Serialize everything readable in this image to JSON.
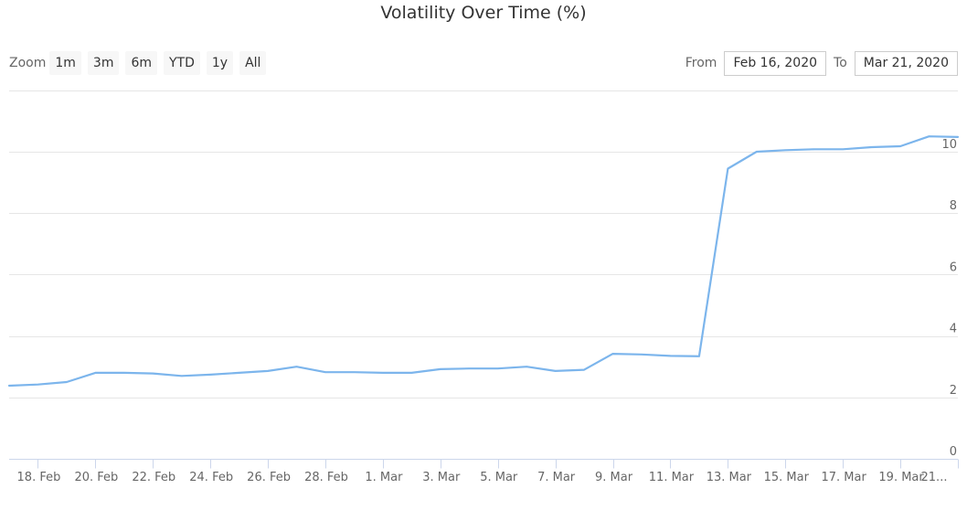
{
  "title": "Volatility Over Time (%)",
  "range_selector": {
    "zoom_label": "Zoom",
    "buttons": [
      "1m",
      "3m",
      "6m",
      "YTD",
      "1y",
      "All"
    ]
  },
  "date_inputs": {
    "from_label": "From",
    "from_value": "Feb 16, 2020",
    "to_label": "To",
    "to_value": "Mar 21, 2020"
  },
  "colors": {
    "line": "#7cb5ec",
    "grid": "#e6e6e6",
    "axis": "#ccd6eb",
    "text": "#666666"
  },
  "chart_data": {
    "type": "line",
    "title": "Volatility Over Time (%)",
    "xlabel": "",
    "ylabel": "",
    "y_ticks": [
      0,
      2,
      4,
      6,
      8,
      10
    ],
    "ylim": [
      0,
      12
    ],
    "grid": true,
    "x_tick_labels": [
      "18. Feb",
      "20. Feb",
      "22. Feb",
      "24. Feb",
      "26. Feb",
      "28. Feb",
      "1. Mar",
      "3. Mar",
      "5. Mar",
      "7. Mar",
      "9. Mar",
      "11. Mar",
      "13. Mar",
      "15. Mar",
      "17. Mar",
      "19. Mar",
      "21..."
    ],
    "x_tick_dates": [
      "2020-02-18",
      "2020-02-20",
      "2020-02-22",
      "2020-02-24",
      "2020-02-26",
      "2020-02-28",
      "2020-03-01",
      "2020-03-03",
      "2020-03-05",
      "2020-03-07",
      "2020-03-09",
      "2020-03-11",
      "2020-03-13",
      "2020-03-15",
      "2020-03-17",
      "2020-03-19",
      "2020-03-21"
    ],
    "x": [
      "2020-02-17",
      "2020-02-18",
      "2020-02-19",
      "2020-02-20",
      "2020-02-21",
      "2020-02-22",
      "2020-02-23",
      "2020-02-24",
      "2020-02-25",
      "2020-02-26",
      "2020-02-27",
      "2020-02-28",
      "2020-02-29",
      "2020-03-01",
      "2020-03-02",
      "2020-03-03",
      "2020-03-04",
      "2020-03-05",
      "2020-03-06",
      "2020-03-07",
      "2020-03-08",
      "2020-03-09",
      "2020-03-10",
      "2020-03-11",
      "2020-03-12",
      "2020-03-13",
      "2020-03-14",
      "2020-03-15",
      "2020-03-16",
      "2020-03-17",
      "2020-03-18",
      "2020-03-19",
      "2020-03-20",
      "2020-03-21"
    ],
    "series": [
      {
        "values": [
          2.38,
          2.42,
          2.5,
          2.8,
          2.8,
          2.78,
          2.7,
          2.74,
          2.8,
          2.86,
          3.0,
          2.82,
          2.82,
          2.8,
          2.8,
          2.92,
          2.94,
          2.94,
          3.0,
          2.86,
          2.9,
          3.42,
          3.4,
          3.35,
          3.34,
          9.45,
          10.0,
          10.05,
          10.08,
          10.08,
          10.15,
          10.18,
          10.5,
          10.48
        ]
      }
    ]
  }
}
